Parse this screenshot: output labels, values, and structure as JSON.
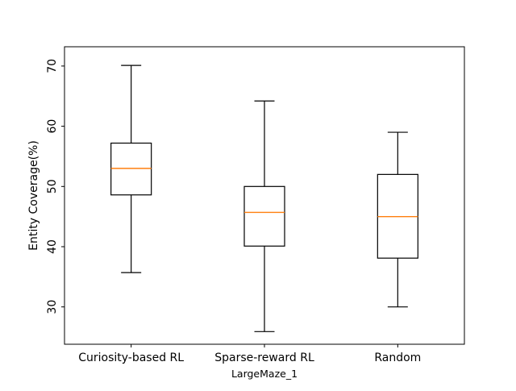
{
  "chart_data": {
    "type": "box",
    "title": "",
    "xlabel": "LargeMaze_1",
    "ylabel": "Entity Coverage(%)",
    "ylim": [
      23.8,
      73.2
    ],
    "yticks": [
      30,
      40,
      50,
      60,
      70
    ],
    "grid": false,
    "categories": [
      "Curiosity-based RL",
      "Sparse-reward RL",
      "Random"
    ],
    "boxes": [
      {
        "category": "Curiosity-based RL",
        "whisker_low": 35.7,
        "q1": 48.6,
        "median": 53.0,
        "q3": 57.2,
        "whisker_high": 70.1
      },
      {
        "category": "Sparse-reward RL",
        "whisker_low": 25.9,
        "q1": 40.1,
        "median": 45.7,
        "q3": 50.0,
        "whisker_high": 64.2
      },
      {
        "category": "Random",
        "whisker_low": 30.0,
        "q1": 38.1,
        "median": 45.0,
        "q3": 52.0,
        "whisker_high": 59.0
      }
    ],
    "colors": {
      "box": "#000000",
      "median": "#ff7f0e",
      "whisker": "#000000"
    }
  }
}
